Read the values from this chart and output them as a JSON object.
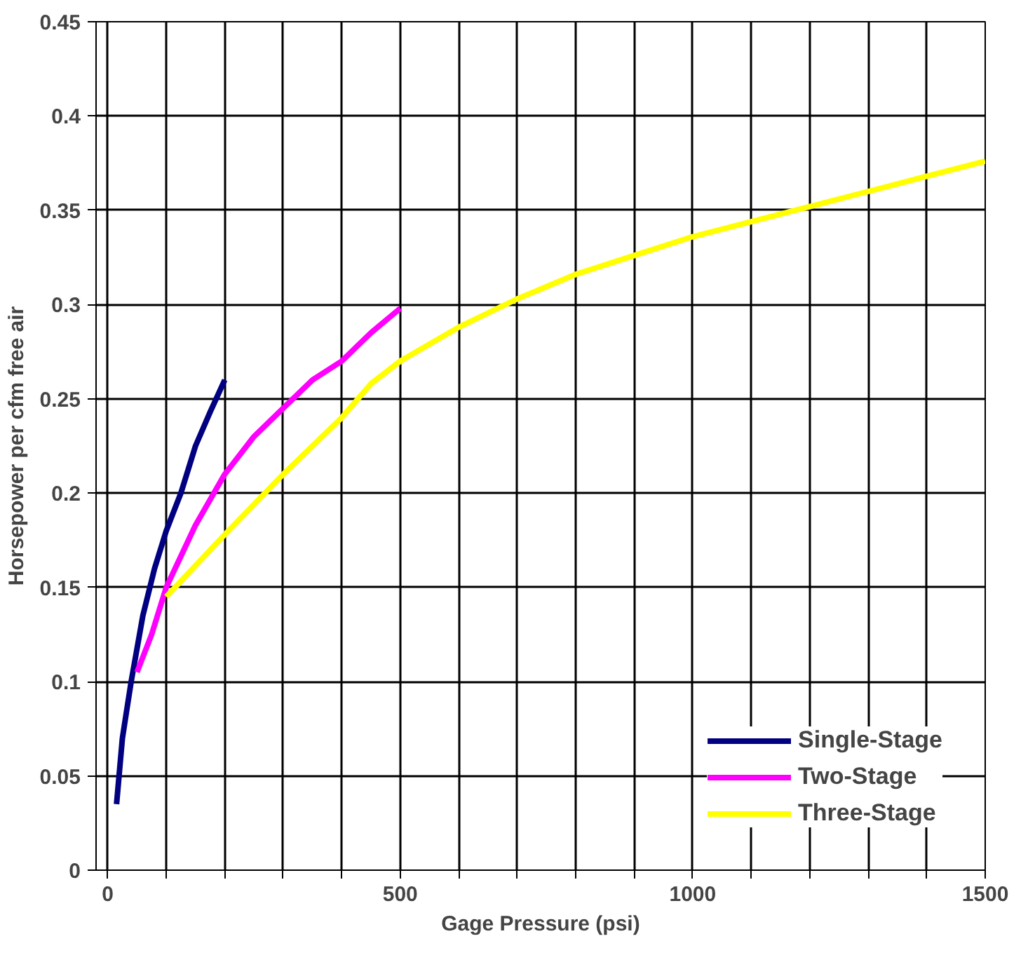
{
  "chart_data": {
    "type": "line",
    "xlabel": "Gage Pressure (psi)",
    "ylabel": "Horsepower per cfm free air",
    "xlim": [
      -20,
      1500
    ],
    "ylim": [
      0,
      0.45
    ],
    "xticks": [
      0,
      {
        "value": 100,
        "label": null
      },
      {
        "value": 200,
        "label": null
      },
      {
        "value": 300,
        "label": null
      },
      {
        "value": 400,
        "label": null
      },
      500,
      {
        "value": 600,
        "label": null
      },
      {
        "value": 700,
        "label": null
      },
      {
        "value": 800,
        "label": null
      },
      {
        "value": 900,
        "label": null
      },
      1000,
      {
        "value": 1100,
        "label": null
      },
      {
        "value": 1200,
        "label": null
      },
      {
        "value": 1300,
        "label": null
      },
      {
        "value": 1400,
        "label": null
      },
      1500
    ],
    "yticks": [
      0,
      0.05,
      0.1,
      0.15,
      0.2,
      0.25,
      0.3,
      0.35,
      0.4,
      0.45
    ],
    "grid": true,
    "legend": "bottom right",
    "marker": "none",
    "line_style": "solid",
    "series": [
      {
        "name": "Single-Stage",
        "color": "#000080",
        "x": [
          15,
          25,
          40,
          60,
          80,
          100,
          125,
          150,
          175,
          200
        ],
        "values": [
          0.035,
          0.07,
          0.1,
          0.135,
          0.16,
          0.18,
          0.2,
          0.225,
          0.243,
          0.26
        ]
      },
      {
        "name": "Two-Stage",
        "color": "#ff00ff",
        "x": [
          50,
          75,
          100,
          150,
          200,
          250,
          300,
          350,
          400,
          450,
          500
        ],
        "values": [
          0.105,
          0.125,
          0.15,
          0.183,
          0.21,
          0.23,
          0.245,
          0.26,
          0.27,
          0.285,
          0.298
        ]
      },
      {
        "name": "Three-Stage",
        "color": "#ffff00",
        "x": [
          100,
          200,
          300,
          400,
          450,
          500,
          600,
          700,
          800,
          900,
          1000,
          1100,
          1200,
          1300,
          1400,
          1500
        ],
        "values": [
          0.145,
          0.178,
          0.21,
          0.24,
          0.258,
          0.27,
          0.288,
          0.303,
          0.316,
          0.326,
          0.336,
          0.344,
          0.352,
          0.36,
          0.368,
          0.376
        ]
      }
    ]
  }
}
